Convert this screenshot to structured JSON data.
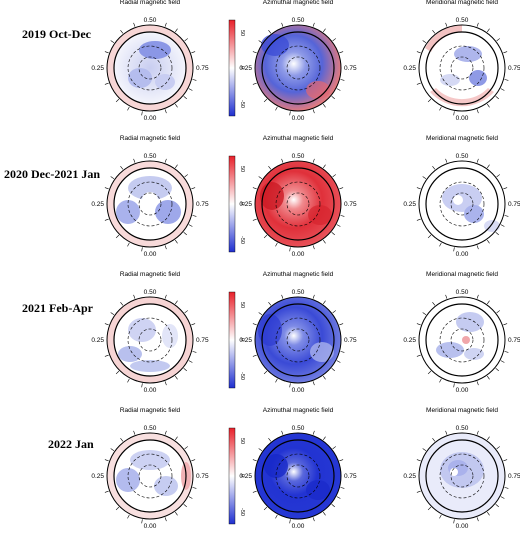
{
  "panel_titles": [
    "Radial magnetic field",
    "Azimuthal magnetic field",
    "Meridional magnetic field"
  ],
  "phase_labels": {
    "top": "0.50",
    "bottom": "0.00",
    "left": "0.25",
    "right": "0.75"
  },
  "colorbar_ticks": [
    "50",
    "0",
    "-50"
  ],
  "colors": {
    "positive": "#e8202a",
    "negative": "#1f2fd0",
    "zero": "#ffffff"
  },
  "rows": [
    {
      "label": "2019 Oct-Dec"
    },
    {
      "label": "2020 Dec-2021 Jan"
    },
    {
      "label": "2021 Feb-Apr"
    },
    {
      "label": "2022 Jan"
    }
  ]
}
